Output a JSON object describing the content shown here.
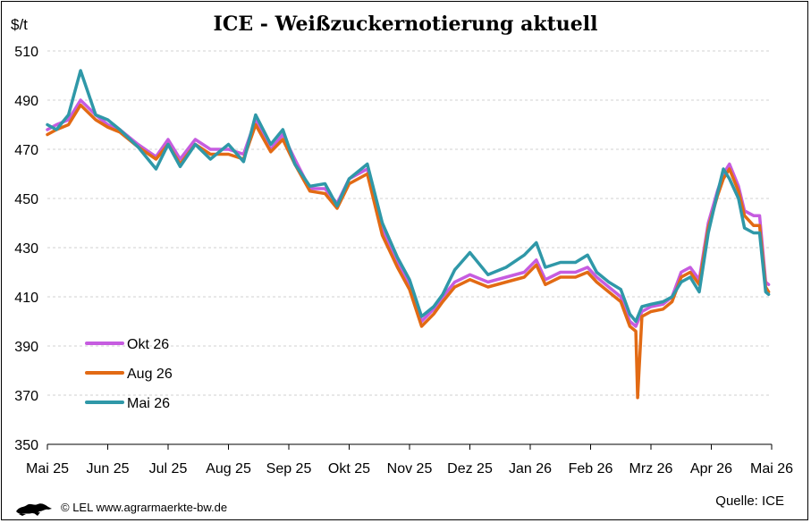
{
  "chart_data": {
    "type": "line",
    "title": "ICE - Weißzuckernotierung aktuell",
    "ylabel": "$/t",
    "xlabel": "",
    "ylim": [
      350,
      510
    ],
    "yticks": [
      350,
      370,
      390,
      410,
      430,
      450,
      470,
      490,
      510
    ],
    "xlim": [
      0,
      12
    ],
    "grid": "horizontal dashed",
    "categories": [
      "Mai 25",
      "Jun 25",
      "Jul 25",
      "Aug 25",
      "Sep 25",
      "Okt 25",
      "Nov 25",
      "Dez 25",
      "Jan 26",
      "Feb 26",
      "Mrz 26",
      "Apr 26",
      "Mai 26"
    ],
    "legend_position": "bottom-left",
    "series": [
      {
        "name": "Okt 26",
        "color": "#c65ce0",
        "x": [
          0.0,
          0.15,
          0.35,
          0.55,
          0.8,
          1.0,
          1.2,
          1.5,
          1.8,
          2.0,
          2.2,
          2.45,
          2.7,
          3.0,
          3.25,
          3.45,
          3.7,
          3.9,
          4.1,
          4.35,
          4.6,
          4.8,
          5.0,
          5.3,
          5.55,
          5.8,
          6.0,
          6.2,
          6.4,
          6.55,
          6.75,
          7.0,
          7.3,
          7.6,
          7.9,
          8.1,
          8.25,
          8.5,
          8.75,
          8.95,
          9.1,
          9.3,
          9.5,
          9.65,
          9.75,
          9.85,
          10.0,
          10.2,
          10.35,
          10.5,
          10.65,
          10.8,
          10.95,
          11.1,
          11.2,
          11.3,
          11.45,
          11.55,
          11.7,
          11.8,
          11.9,
          11.95
        ],
        "values": [
          478,
          480,
          482,
          490,
          484,
          480,
          478,
          472,
          467,
          474,
          466,
          474,
          470,
          470,
          468,
          482,
          470,
          476,
          466,
          454,
          454,
          448,
          458,
          462,
          437,
          424,
          415,
          400,
          405,
          410,
          416,
          419,
          416,
          418,
          420,
          425,
          417,
          420,
          420,
          422,
          418,
          414,
          410,
          400,
          398,
          404,
          406,
          407,
          410,
          420,
          422,
          417,
          440,
          453,
          460,
          464,
          455,
          445,
          443,
          443,
          416,
          415
        ]
      },
      {
        "name": "Aug 26",
        "color": "#e26a14",
        "x": [
          0.0,
          0.15,
          0.35,
          0.55,
          0.8,
          1.0,
          1.2,
          1.5,
          1.8,
          2.0,
          2.2,
          2.45,
          2.7,
          3.0,
          3.25,
          3.45,
          3.7,
          3.9,
          4.1,
          4.35,
          4.6,
          4.8,
          5.0,
          5.3,
          5.55,
          5.8,
          6.0,
          6.2,
          6.4,
          6.55,
          6.75,
          7.0,
          7.3,
          7.6,
          7.9,
          8.1,
          8.25,
          8.5,
          8.75,
          8.95,
          9.1,
          9.3,
          9.5,
          9.65,
          9.75,
          9.78,
          9.85,
          10.0,
          10.2,
          10.35,
          10.5,
          10.65,
          10.8,
          10.95,
          11.1,
          11.2,
          11.3,
          11.45,
          11.55,
          11.7,
          11.8,
          11.9,
          11.95
        ],
        "values": [
          476,
          478,
          480,
          488,
          482,
          479,
          477,
          471,
          466,
          472,
          464,
          472,
          468,
          468,
          466,
          480,
          469,
          474,
          464,
          453,
          452,
          446,
          456,
          460,
          435,
          422,
          413,
          398,
          403,
          408,
          414,
          417,
          414,
          416,
          418,
          423,
          415,
          418,
          418,
          420,
          416,
          412,
          408,
          398,
          396,
          369,
          402,
          404,
          405,
          408,
          418,
          420,
          415,
          438,
          451,
          458,
          462,
          453,
          443,
          439,
          439,
          414,
          412
        ]
      },
      {
        "name": "Mai 26",
        "color": "#2f98a8",
        "x": [
          0.0,
          0.15,
          0.35,
          0.55,
          0.8,
          1.0,
          1.2,
          1.5,
          1.8,
          2.0,
          2.2,
          2.45,
          2.7,
          3.0,
          3.25,
          3.45,
          3.7,
          3.9,
          4.1,
          4.35,
          4.6,
          4.8,
          5.0,
          5.3,
          5.55,
          5.8,
          6.0,
          6.2,
          6.4,
          6.55,
          6.75,
          7.0,
          7.3,
          7.6,
          7.9,
          8.1,
          8.25,
          8.5,
          8.75,
          8.95,
          9.1,
          9.3,
          9.5,
          9.65,
          9.75,
          9.85,
          10.0,
          10.2,
          10.35,
          10.5,
          10.65,
          10.8,
          10.95,
          11.1,
          11.2,
          11.3,
          11.45,
          11.55,
          11.7,
          11.8,
          11.9,
          11.95
        ],
        "values": [
          480,
          478,
          484,
          502,
          484,
          482,
          478,
          471,
          462,
          472,
          463,
          472,
          466,
          472,
          465,
          484,
          472,
          478,
          464,
          455,
          456,
          447,
          458,
          464,
          440,
          426,
          417,
          402,
          406,
          411,
          421,
          428,
          419,
          422,
          427,
          432,
          422,
          424,
          424,
          427,
          420,
          416,
          413,
          403,
          400,
          406,
          407,
          408,
          410,
          416,
          418,
          412,
          436,
          452,
          462,
          458,
          450,
          438,
          436,
          436,
          412,
          411
        ]
      }
    ],
    "source": "Quelle: ICE",
    "copyright": "© LEL www.agrarmaerkte-bw.de"
  }
}
